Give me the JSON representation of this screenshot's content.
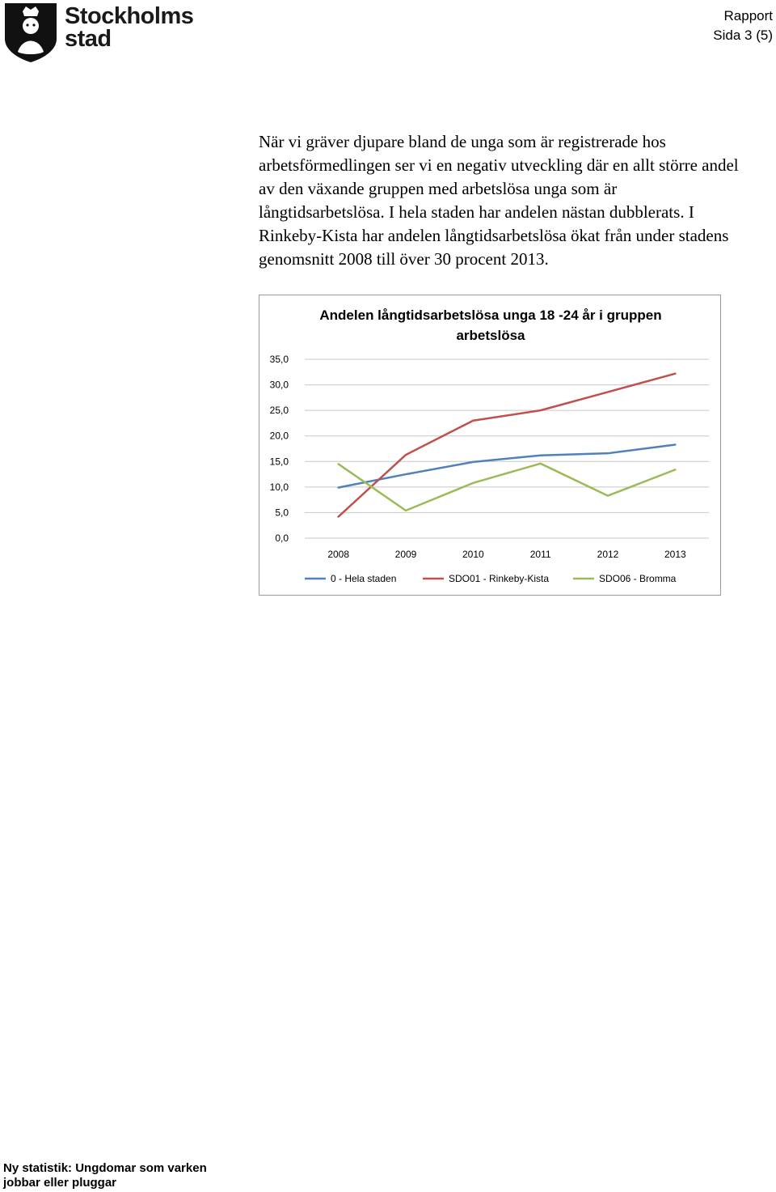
{
  "header": {
    "logo_line1": "Stockholms",
    "logo_line2": "stad",
    "doc_type": "Rapport",
    "page": "Sida 3 (5)"
  },
  "body": {
    "paragraph": "När vi gräver djupare bland de unga som är registrerade hos arbetsförmedlingen ser vi en negativ utveckling där en allt större andel av den växande gruppen med arbetslösa unga som är långtidsarbetslösa. I hela staden har andelen nästan dubblerats. I Rinkeby-Kista har andelen långtidsarbetslösa ökat från under stadens genomsnitt 2008 till över 30 procent 2013."
  },
  "chart_data": {
    "type": "line",
    "title_line1": "Andelen långtidsarbetslösa unga 18 -24 år i gruppen",
    "title_line2": "arbetslösa",
    "x": [
      "2008",
      "2009",
      "2010",
      "2011",
      "2012",
      "2013"
    ],
    "ylim": [
      0,
      35
    ],
    "yticks": [
      "0,0",
      "5,0",
      "10,0",
      "15,0",
      "20,0",
      "25,0",
      "30,0",
      "35,0"
    ],
    "legend_position": "bottom",
    "grid": true,
    "series": [
      {
        "name": "0 - Hela staden",
        "color": "#4f81bd",
        "values": [
          9.9,
          12.5,
          14.9,
          16.2,
          16.6,
          18.3
        ]
      },
      {
        "name": "SDO01 - Rinkeby-Kista",
        "color": "#c0504d",
        "values": [
          4.2,
          16.3,
          23.0,
          25.0,
          28.6,
          32.2
        ]
      },
      {
        "name": "SDO06 - Bromma",
        "color": "#9bbb59",
        "values": [
          14.5,
          5.4,
          10.8,
          14.6,
          8.3,
          13.4
        ]
      }
    ]
  },
  "footer": {
    "line1": "Ny statistik: Ungdomar som varken",
    "line2": "jobbar eller pluggar"
  }
}
